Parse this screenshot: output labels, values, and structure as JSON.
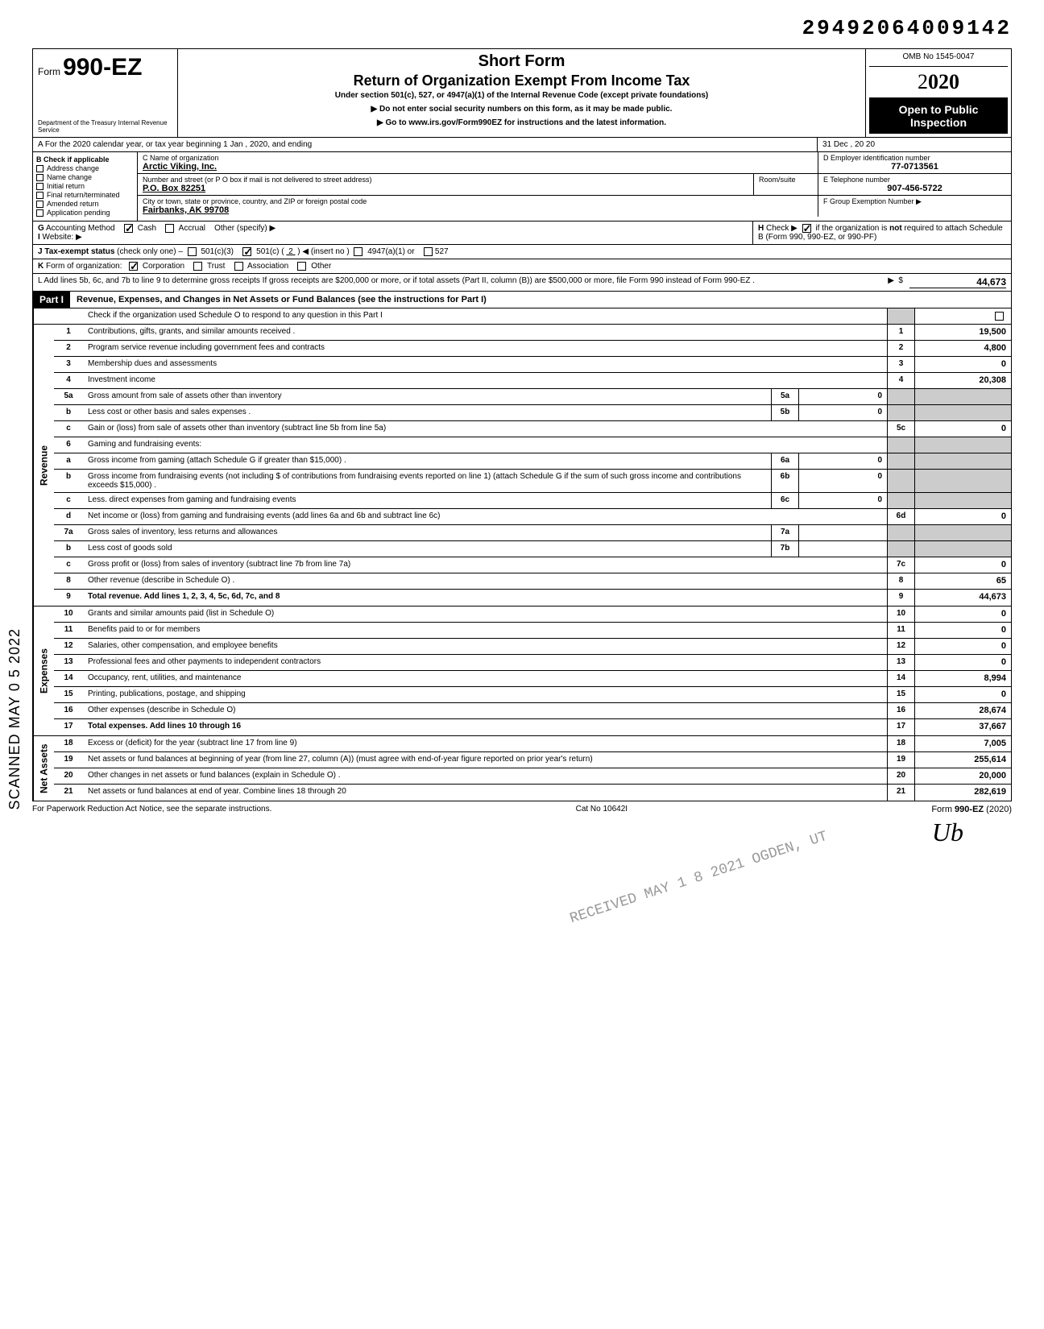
{
  "top_id": "29492064009142",
  "header": {
    "form_prefix": "Form",
    "form_number": "990-EZ",
    "short_form": "Short Form",
    "title": "Return of Organization Exempt From Income Tax",
    "subtitle": "Under section 501(c), 527, or 4947(a)(1) of the Internal Revenue Code (except private foundations)",
    "warn": "▶ Do not enter social security numbers on this form, as it may be made public.",
    "goto": "▶ Go to www.irs.gov/Form990EZ for instructions and the latest information.",
    "dept": "Department of the Treasury\nInternal Revenue Service",
    "omb": "OMB No 1545-0047",
    "year_display": "2020",
    "open": "Open to Public Inspection"
  },
  "row_a": {
    "text": "A For the 2020 calendar year, or tax year beginning        1 Jan        , 2020, and ending",
    "right": "31 Dec            , 20   20"
  },
  "section_b": {
    "label": "B Check if applicable",
    "items": [
      "Address change",
      "Name change",
      "Initial return",
      "Final return/terminated",
      "Amended return",
      "Application pending"
    ]
  },
  "section_c": {
    "c_label": "C Name of organization",
    "name": "Arctic Viking, Inc.",
    "addr_label": "Number and street (or P O box if mail is not delivered to street address)",
    "addr": "P.O. Box 82251",
    "city_label": "City or town, state or province, country, and ZIP or foreign postal code",
    "city": "Fairbanks, AK 99708",
    "room_label": "Room/suite"
  },
  "section_d": {
    "label": "D Employer identification number",
    "value": "77-0713561"
  },
  "section_e": {
    "label": "E Telephone number",
    "value": "907-456-5722"
  },
  "section_f": {
    "label": "F Group Exemption Number ▶",
    "value": ""
  },
  "row_g": "G Accounting Method    ☑ Cash    ☐ Accrual    Other (specify) ▶",
  "row_h": "H Check ▶ ☑ if the organization is not required to attach Schedule B (Form 990, 990-EZ, or 990-PF)",
  "row_i": "I Website: ▶",
  "row_j": "J Tax-exempt status (check only one) – ☐ 501(c)(3)   ☑ 501(c) ( 2 ) ◀ (insert no ) ☐ 4947(a)(1) or   ☐527",
  "row_k": "K Form of organization:  ☑ Corporation    ☐ Trust    ☐ Association    ☐ Other",
  "row_l": {
    "text": "L Add lines 5b, 6c, and 7b to line 9 to determine gross receipts If gross receipts are $200,000 or more, or if total assets (Part II, column (B)) are $500,000 or more, file Form 990 instead of Form 990-EZ .",
    "amount": "44,673"
  },
  "part1": {
    "label": "Part I",
    "title": "Revenue, Expenses, and Changes in Net Assets or Fund Balances (see the instructions for Part I)",
    "check_text": "Check if the organization used Schedule O to respond to any question in this Part I"
  },
  "side_labels": {
    "revenue": "Revenue",
    "expenses": "Expenses",
    "netassets": "Net Assets"
  },
  "lines": [
    {
      "no": "1",
      "desc": "Contributions, gifts, grants, and similar amounts received .",
      "col": "1",
      "amt": "19,500"
    },
    {
      "no": "2",
      "desc": "Program service revenue including government fees and contracts",
      "col": "2",
      "amt": "4,800"
    },
    {
      "no": "3",
      "desc": "Membership dues and assessments",
      "col": "3",
      "amt": "0"
    },
    {
      "no": "4",
      "desc": "Investment income",
      "col": "4",
      "amt": "20,308"
    },
    {
      "no": "5a",
      "desc": "Gross amount from sale of assets other than inventory",
      "sub": "5a",
      "subamt": "0",
      "shade_right": true
    },
    {
      "no": "b",
      "desc": "Less cost or other basis and sales expenses .",
      "sub": "5b",
      "subamt": "0",
      "shade_right": true
    },
    {
      "no": "c",
      "desc": "Gain or (loss) from sale of assets other than inventory (subtract line 5b from line 5a)",
      "col": "5c",
      "amt": "0"
    },
    {
      "no": "6",
      "desc": "Gaming and fundraising events:",
      "shade_right": true
    },
    {
      "no": "a",
      "desc": "Gross income from gaming (attach Schedule G if greater than $15,000) .",
      "sub": "6a",
      "subamt": "0",
      "shade_right": true
    },
    {
      "no": "b",
      "desc": "Gross income from fundraising events (not including $           of contributions from fundraising events reported on line 1) (attach Schedule G if the sum of such gross income and contributions exceeds $15,000) .",
      "sub": "6b",
      "subamt": "0",
      "shade_right": true
    },
    {
      "no": "c",
      "desc": "Less. direct expenses from gaming and fundraising events",
      "sub": "6c",
      "subamt": "0",
      "shade_right": true
    },
    {
      "no": "d",
      "desc": "Net income or (loss) from gaming and fundraising events (add lines 6a and 6b and subtract line 6c)",
      "col": "6d",
      "amt": "0"
    },
    {
      "no": "7a",
      "desc": "Gross sales of inventory, less returns and allowances",
      "sub": "7a",
      "subamt": "",
      "shade_right": true
    },
    {
      "no": "b",
      "desc": "Less cost of goods sold",
      "sub": "7b",
      "subamt": "",
      "shade_right": true
    },
    {
      "no": "c",
      "desc": "Gross profit or (loss) from sales of inventory (subtract line 7b from line 7a)",
      "col": "7c",
      "amt": "0"
    },
    {
      "no": "8",
      "desc": "Other revenue (describe in Schedule O) .",
      "col": "8",
      "amt": "65"
    },
    {
      "no": "9",
      "desc": "Total revenue. Add lines 1, 2, 3, 4, 5c, 6d, 7c, and 8",
      "col": "9",
      "amt": "44,673",
      "bold": true
    }
  ],
  "exp_lines": [
    {
      "no": "10",
      "desc": "Grants and similar amounts paid (list in Schedule O)",
      "col": "10",
      "amt": "0"
    },
    {
      "no": "11",
      "desc": "Benefits paid to or for members",
      "col": "11",
      "amt": "0"
    },
    {
      "no": "12",
      "desc": "Salaries, other compensation, and employee benefits",
      "col": "12",
      "amt": "0"
    },
    {
      "no": "13",
      "desc": "Professional fees and other payments to independent contractors",
      "col": "13",
      "amt": "0"
    },
    {
      "no": "14",
      "desc": "Occupancy, rent, utilities, and maintenance",
      "col": "14",
      "amt": "8,994"
    },
    {
      "no": "15",
      "desc": "Printing, publications, postage, and shipping",
      "col": "15",
      "amt": "0"
    },
    {
      "no": "16",
      "desc": "Other expenses (describe in Schedule O)",
      "col": "16",
      "amt": "28,674"
    },
    {
      "no": "17",
      "desc": "Total expenses. Add lines 10 through 16",
      "col": "17",
      "amt": "37,667",
      "bold": true
    }
  ],
  "na_lines": [
    {
      "no": "18",
      "desc": "Excess or (deficit) for the year (subtract line 17 from line 9)",
      "col": "18",
      "amt": "7,005"
    },
    {
      "no": "19",
      "desc": "Net assets or fund balances at beginning of year (from line 27, column (A)) (must agree with end-of-year figure reported on prior year's return)",
      "col": "19",
      "amt": "255,614"
    },
    {
      "no": "20",
      "desc": "Other changes in net assets or fund balances (explain in Schedule O) .",
      "col": "20",
      "amt": "20,000"
    },
    {
      "no": "21",
      "desc": "Net assets or fund balances at end of year. Combine lines 18 through 20",
      "col": "21",
      "amt": "282,619"
    }
  ],
  "footer": {
    "left": "For Paperwork Reduction Act Notice, see the separate instructions.",
    "center": "Cat No 10642I",
    "right": "Form 990-EZ (2020)"
  },
  "scanned_text": "SCANNED MAY 0 5 2022",
  "stamp_text": "RECEIVED\nMAY 1 8 2021\nOGDEN, UT",
  "colors": {
    "black": "#000000",
    "white": "#ffffff",
    "shade": "#cccccc"
  }
}
